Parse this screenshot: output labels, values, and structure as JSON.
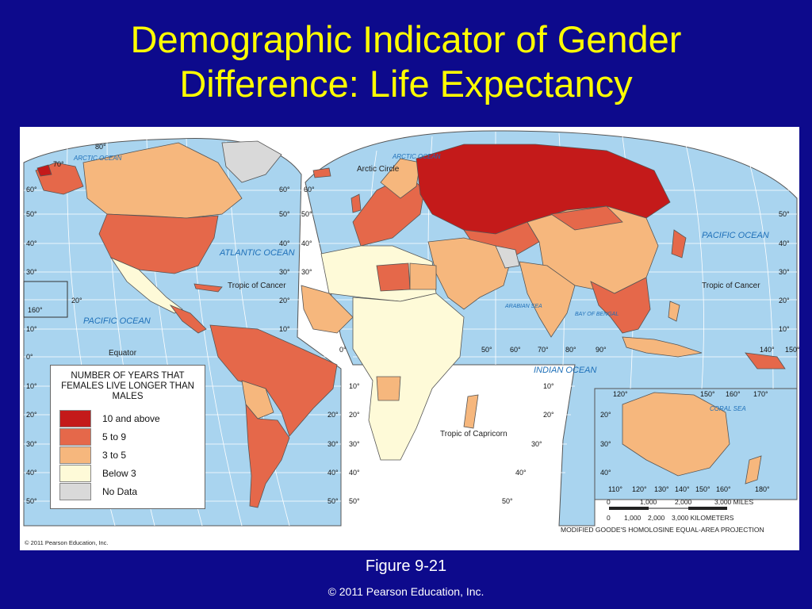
{
  "title": {
    "line1": "Demographic Indicator of Gender",
    "line2": "Difference: Life Expectancy"
  },
  "figure_label": "Figure 9-21",
  "copyright": "© 2011 Pearson Education, Inc.",
  "map": {
    "small_copyright": "© 2011 Pearson Education, Inc.",
    "projection": "MODIFIED GOODE'S HOMOLOSINE EQUAL-AREA PROJECTION",
    "scale_miles": [
      "0",
      "1,000",
      "2,000",
      "3,000 MILES"
    ],
    "scale_km": [
      "0",
      "1,000",
      "2,000",
      "3,000 KILOMETERS"
    ],
    "ocean_labels": {
      "arctic_w": "ARCTIC OCEAN",
      "arctic_e": "ARCTIC OCEAN",
      "atlantic": "ATLANTIC OCEAN",
      "pacific_w": "PACIFIC OCEAN",
      "pacific_e": "PACIFIC OCEAN",
      "indian": "INDIAN OCEAN",
      "arabian": "ARABIAN SEA",
      "bengal": "BAY OF BENGAL",
      "coral": "CORAL SEA"
    },
    "lines": {
      "arctic_circle": "Arctic Circle",
      "cancer_w": "Tropic of Cancer",
      "cancer_e": "Tropic of Cancer",
      "equator": "Equator",
      "capricorn": "Tropic of Capricorn"
    },
    "legend": {
      "title": "NUMBER OF YEARS THAT FEMALES LIVE LONGER THAN MALES",
      "items": [
        {
          "label": "10 and above",
          "color": "#c41a1a"
        },
        {
          "label": "5 to 9",
          "color": "#e5684a"
        },
        {
          "label": "3 to 5",
          "color": "#f6b77d"
        },
        {
          "label": "Below 3",
          "color": "#fefad8"
        },
        {
          "label": "No Data",
          "color": "#d9d9d9"
        }
      ]
    },
    "colors": {
      "ocean": "#a9d4ef",
      "grid": "#ffffff",
      "border": "#555555"
    }
  }
}
